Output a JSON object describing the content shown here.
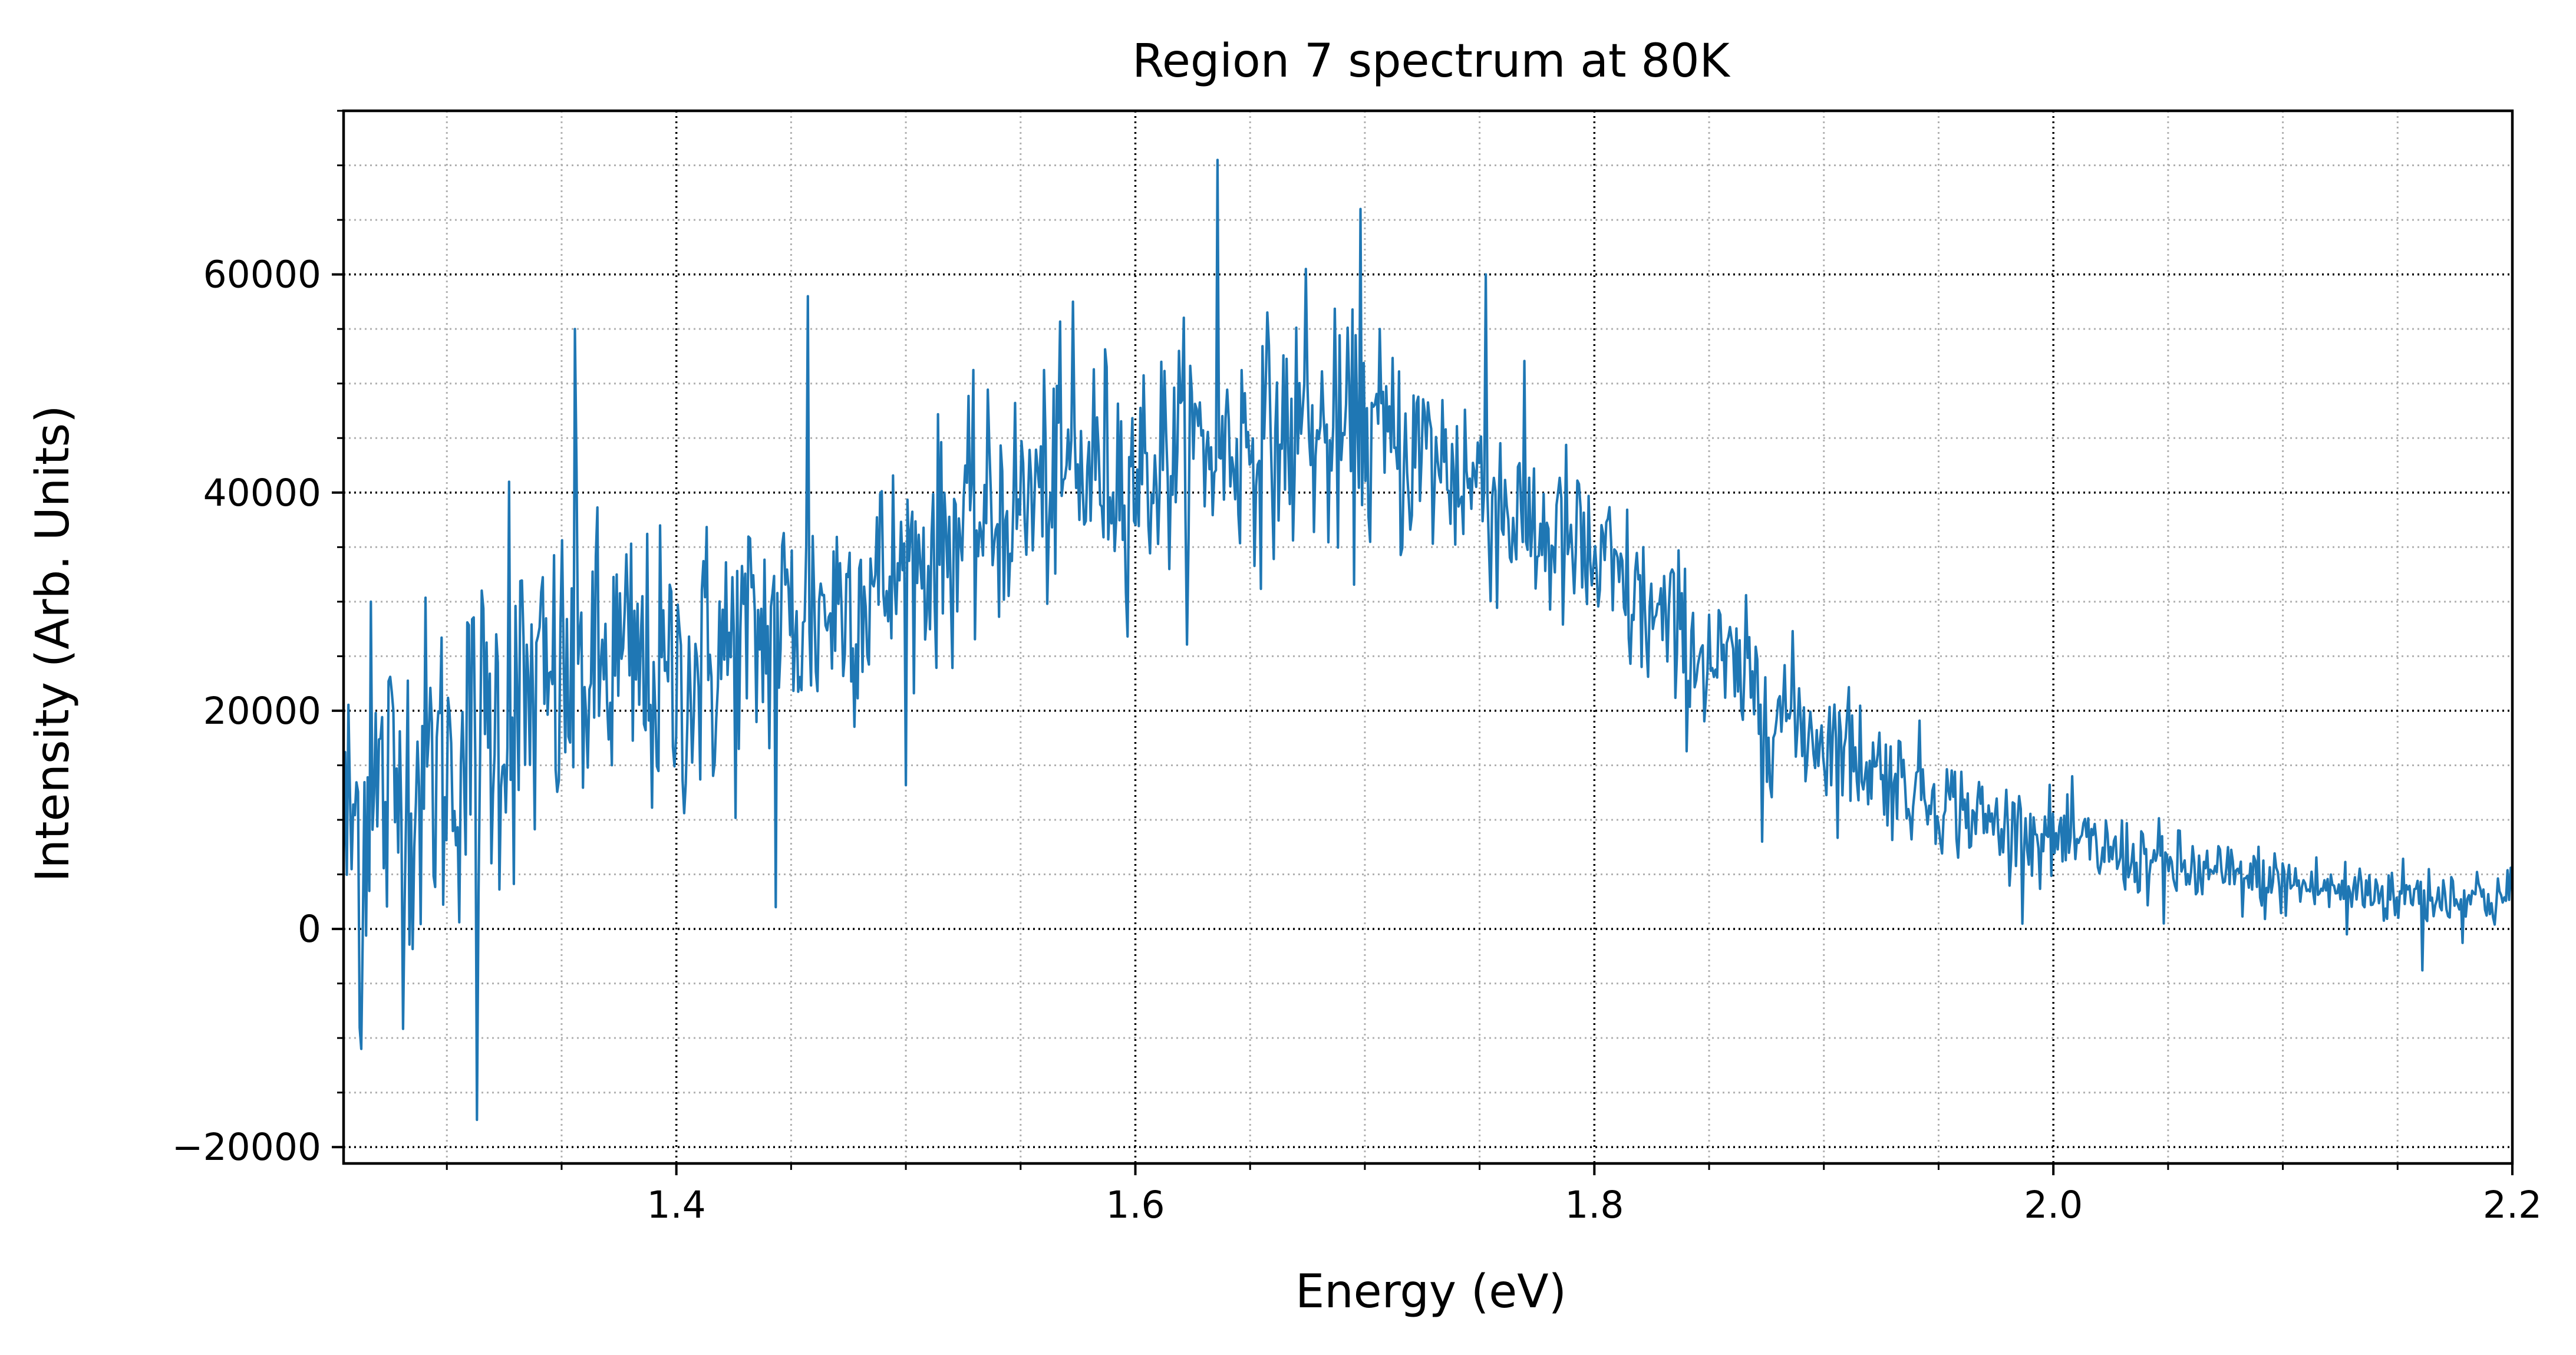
{
  "chart_data": {
    "type": "line",
    "title": "Region 7 spectrum at 80K",
    "xlabel": "Energy (eV)",
    "ylabel": "Intensity (Arb. Units)",
    "xlim": [
      1.255,
      2.2
    ],
    "ylim": [
      -21500,
      75000
    ],
    "x_ticks": [
      1.4,
      1.6,
      1.8,
      2.0,
      2.2
    ],
    "x_tick_labels": [
      "1.4",
      "1.6",
      "1.8",
      "2.0",
      "2.2"
    ],
    "y_ticks": [
      -20000,
      0,
      20000,
      40000,
      60000
    ],
    "y_tick_labels": [
      "−20000",
      "0",
      "20000",
      "40000",
      "60000"
    ],
    "x_minor_step": 0.05,
    "y_minor_step": 5000,
    "grid": true,
    "legend": "none",
    "line_color": "#1f77b4",
    "series": [
      {
        "x": [
          1.255,
          1.265,
          1.275,
          1.285,
          1.295,
          1.305,
          1.315,
          1.325,
          1.335,
          1.345,
          1.355,
          1.365,
          1.375,
          1.385,
          1.395,
          1.405,
          1.415,
          1.425,
          1.435,
          1.445,
          1.455,
          1.465,
          1.475,
          1.485,
          1.495,
          1.505,
          1.515,
          1.525,
          1.535,
          1.545,
          1.555,
          1.565,
          1.575,
          1.585,
          1.595,
          1.605,
          1.615,
          1.625,
          1.635,
          1.645,
          1.655,
          1.665,
          1.675,
          1.685,
          1.695,
          1.705,
          1.715,
          1.725,
          1.735,
          1.745,
          1.755,
          1.765,
          1.775,
          1.785,
          1.795,
          1.805,
          1.815,
          1.825,
          1.835,
          1.845,
          1.855,
          1.865,
          1.875,
          1.885,
          1.895,
          1.905,
          1.915,
          1.925,
          1.935,
          1.945,
          1.955,
          1.965,
          1.975,
          1.985,
          1.995,
          2.005,
          2.015,
          2.025,
          2.035,
          2.045,
          2.055,
          2.065,
          2.075,
          2.085,
          2.095,
          2.105,
          2.115,
          2.125,
          2.135,
          2.145,
          2.155,
          2.165,
          2.175,
          2.185,
          2.195,
          2.2
        ],
        "y": [
          8000,
          11000,
          12000,
          13500,
          14500,
          15500,
          17500,
          19500,
          20500,
          21500,
          22500,
          23500,
          24000,
          23500,
          22000,
          23000,
          24500,
          25500,
          26500,
          28000,
          28500,
          29500,
          30500,
          31500,
          32000,
          33500,
          35500,
          36500,
          37500,
          38500,
          39500,
          41000,
          41500,
          42500,
          42000,
          42000,
          43500,
          44000,
          44500,
          44500,
          45000,
          45000,
          45000,
          44500,
          45000,
          45000,
          44000,
          43500,
          42500,
          41500,
          40000,
          38000,
          36500,
          35500,
          34000,
          32500,
          30500,
          28500,
          27000,
          25500,
          24000,
          22500,
          21000,
          19500,
          18000,
          17000,
          16000,
          14500,
          13500,
          12500,
          11500,
          10500,
          9500,
          9000,
          8500,
          8000,
          7500,
          7000,
          6500,
          6000,
          5500,
          5000,
          4800,
          4500,
          4300,
          4000,
          3800,
          3600,
          3500,
          3300,
          3200,
          3100,
          3000,
          3000,
          2800,
          2800
        ],
        "noise": [
          11000,
          13000,
          11500,
          11000,
          10500,
          10000,
          11000,
          10000,
          10500,
          10000,
          10500,
          9500,
          9500,
          9000,
          9000,
          8500,
          9000,
          9000,
          8500,
          8500,
          8000,
          8000,
          7500,
          7500,
          7500,
          7500,
          7000,
          7000,
          7000,
          7000,
          7000,
          7000,
          7000,
          7000,
          7000,
          7000,
          7000,
          7000,
          7000,
          7000,
          7000,
          7000,
          7000,
          7000,
          7000,
          7000,
          6500,
          6500,
          6500,
          6500,
          6500,
          6000,
          6000,
          6000,
          5500,
          5500,
          5500,
          5000,
          5000,
          5000,
          4500,
          4500,
          4500,
          4500,
          4000,
          4000,
          4000,
          3500,
          3500,
          3500,
          3000,
          3000,
          3000,
          2800,
          2800,
          2600,
          2600,
          2500,
          2400,
          2400,
          2300,
          2300,
          2200,
          2200,
          2200,
          2100,
          2100,
          2000,
          2000,
          2000,
          2000,
          2000,
          2000,
          2000,
          2000,
          2000
        ]
      }
    ],
    "spikes": [
      {
        "x": 1.263,
        "y": -11000
      },
      {
        "x": 1.267,
        "y": 30000
      },
      {
        "x": 1.313,
        "y": -17500
      },
      {
        "x": 1.327,
        "y": 41000
      },
      {
        "x": 1.356,
        "y": 55000
      },
      {
        "x": 1.443,
        "y": 2000
      },
      {
        "x": 1.457,
        "y": 58000
      },
      {
        "x": 1.573,
        "y": 57500
      },
      {
        "x": 1.636,
        "y": 70500
      },
      {
        "x": 1.674,
        "y": 60500
      },
      {
        "x": 1.698,
        "y": 66000
      },
      {
        "x": 1.753,
        "y": 60000
      },
      {
        "x": 1.873,
        "y": 8000
      },
      {
        "x": 1.935,
        "y": 15500
      },
      {
        "x": 1.986,
        "y": 11000
      },
      {
        "x": 2.048,
        "y": 500
      },
      {
        "x": 2.128,
        "y": -500
      },
      {
        "x": 2.161,
        "y": -3800
      }
    ]
  }
}
